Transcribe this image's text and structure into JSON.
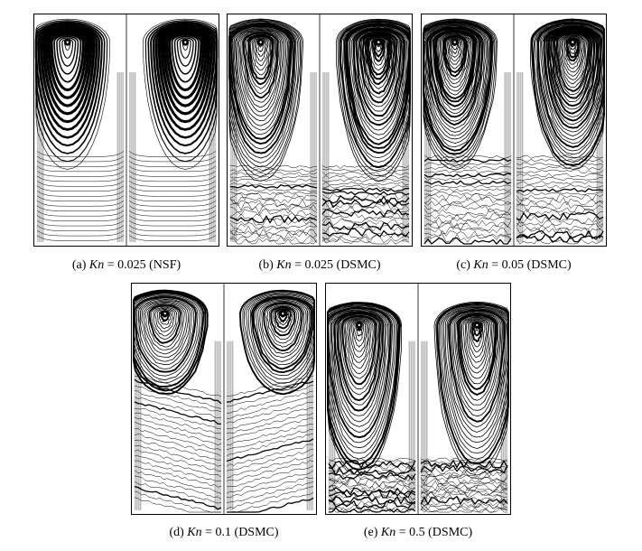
{
  "figure": {
    "panels": [
      {
        "id": "a",
        "label": "(a)",
        "var": "Kn",
        "eq": "= 0.025",
        "method": "(NSF)"
      },
      {
        "id": "b",
        "label": "(b)",
        "var": "Kn",
        "eq": "= 0.025",
        "method": "(DSMC)"
      },
      {
        "id": "c",
        "label": "(c)",
        "var": "Kn",
        "eq": "= 0.05",
        "method": "(DSMC)"
      },
      {
        "id": "d",
        "label": "(d)",
        "var": "Kn",
        "eq": "= 0.1",
        "method": "(DSMC)"
      },
      {
        "id": "e",
        "label": "(e)",
        "var": "Kn",
        "eq": "= 0.5",
        "method": "(DSMC)"
      }
    ]
  }
}
